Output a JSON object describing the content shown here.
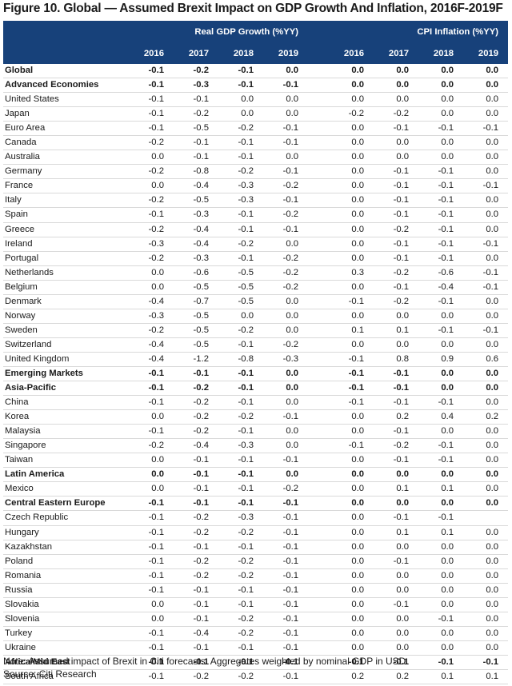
{
  "title": "Figure 10. Global — Assumed Brexit Impact on GDP Growth And Inflation, 2016F-2019F",
  "header": {
    "gdp_label": "Real GDP Growth (%YY)",
    "cpi_label": "CPI Inflation (%YY)",
    "years": [
      "2016",
      "2017",
      "2018",
      "2019"
    ]
  },
  "rows": [
    {
      "name": "Global",
      "bold": true,
      "gdp": [
        "-0.1",
        "-0.2",
        "-0.1",
        "0.0"
      ],
      "cpi": [
        "0.0",
        "0.0",
        "0.0",
        "0.0"
      ]
    },
    {
      "name": "Advanced Economies",
      "bold": true,
      "gdp": [
        "-0.1",
        "-0.3",
        "-0.1",
        "-0.1"
      ],
      "cpi": [
        "0.0",
        "0.0",
        "0.0",
        "0.0"
      ]
    },
    {
      "name": "United States",
      "bold": false,
      "gdp": [
        "-0.1",
        "-0.1",
        "0.0",
        "0.0"
      ],
      "cpi": [
        "0.0",
        "0.0",
        "0.0",
        "0.0"
      ]
    },
    {
      "name": "Japan",
      "bold": false,
      "gdp": [
        "-0.1",
        "-0.2",
        "0.0",
        "0.0"
      ],
      "cpi": [
        "-0.2",
        "-0.2",
        "0.0",
        "0.0"
      ]
    },
    {
      "name": "Euro Area",
      "bold": false,
      "gdp": [
        "-0.1",
        "-0.5",
        "-0.2",
        "-0.1"
      ],
      "cpi": [
        "0.0",
        "-0.1",
        "-0.1",
        "-0.1"
      ]
    },
    {
      "name": "Canada",
      "bold": false,
      "gdp": [
        "-0.2",
        "-0.1",
        "-0.1",
        "-0.1"
      ],
      "cpi": [
        "0.0",
        "0.0",
        "0.0",
        "0.0"
      ]
    },
    {
      "name": "Australia",
      "bold": false,
      "gdp": [
        "0.0",
        "-0.1",
        "-0.1",
        "0.0"
      ],
      "cpi": [
        "0.0",
        "0.0",
        "0.0",
        "0.0"
      ]
    },
    {
      "name": "Germany",
      "bold": false,
      "gdp": [
        "-0.2",
        "-0.8",
        "-0.2",
        "-0.1"
      ],
      "cpi": [
        "0.0",
        "-0.1",
        "-0.1",
        "0.0"
      ]
    },
    {
      "name": "France",
      "bold": false,
      "gdp": [
        "0.0",
        "-0.4",
        "-0.3",
        "-0.2"
      ],
      "cpi": [
        "0.0",
        "-0.1",
        "-0.1",
        "-0.1"
      ]
    },
    {
      "name": "Italy",
      "bold": false,
      "gdp": [
        "-0.2",
        "-0.5",
        "-0.3",
        "-0.1"
      ],
      "cpi": [
        "0.0",
        "-0.1",
        "-0.1",
        "0.0"
      ]
    },
    {
      "name": "Spain",
      "bold": false,
      "gdp": [
        "-0.1",
        "-0.3",
        "-0.1",
        "-0.2"
      ],
      "cpi": [
        "0.0",
        "-0.1",
        "-0.1",
        "0.0"
      ]
    },
    {
      "name": "Greece",
      "bold": false,
      "gdp": [
        "-0.2",
        "-0.4",
        "-0.1",
        "-0.1"
      ],
      "cpi": [
        "0.0",
        "-0.2",
        "-0.1",
        "0.0"
      ]
    },
    {
      "name": "Ireland",
      "bold": false,
      "gdp": [
        "-0.3",
        "-0.4",
        "-0.2",
        "0.0"
      ],
      "cpi": [
        "0.0",
        "-0.1",
        "-0.1",
        "-0.1"
      ]
    },
    {
      "name": "Portugal",
      "bold": false,
      "gdp": [
        "-0.2",
        "-0.3",
        "-0.1",
        "-0.2"
      ],
      "cpi": [
        "0.0",
        "-0.1",
        "-0.1",
        "0.0"
      ]
    },
    {
      "name": "Netherlands",
      "bold": false,
      "gdp": [
        "0.0",
        "-0.6",
        "-0.5",
        "-0.2"
      ],
      "cpi": [
        "0.3",
        "-0.2",
        "-0.6",
        "-0.1"
      ]
    },
    {
      "name": "Belgium",
      "bold": false,
      "gdp": [
        "0.0",
        "-0.5",
        "-0.5",
        "-0.2"
      ],
      "cpi": [
        "0.0",
        "-0.1",
        "-0.4",
        "-0.1"
      ]
    },
    {
      "name": "Denmark",
      "bold": false,
      "gdp": [
        "-0.4",
        "-0.7",
        "-0.5",
        "0.0"
      ],
      "cpi": [
        "-0.1",
        "-0.2",
        "-0.1",
        "0.0"
      ]
    },
    {
      "name": "Norway",
      "bold": false,
      "gdp": [
        "-0.3",
        "-0.5",
        "0.0",
        "0.0"
      ],
      "cpi": [
        "0.0",
        "0.0",
        "0.0",
        "0.0"
      ]
    },
    {
      "name": "Sweden",
      "bold": false,
      "gdp": [
        "-0.2",
        "-0.5",
        "-0.2",
        "0.0"
      ],
      "cpi": [
        "0.1",
        "0.1",
        "-0.1",
        "-0.1"
      ]
    },
    {
      "name": "Switzerland",
      "bold": false,
      "gdp": [
        "-0.4",
        "-0.5",
        "-0.1",
        "-0.2"
      ],
      "cpi": [
        "0.0",
        "0.0",
        "0.0",
        "0.0"
      ]
    },
    {
      "name": "United Kingdom",
      "bold": false,
      "gdp": [
        "-0.4",
        "-1.2",
        "-0.8",
        "-0.3"
      ],
      "cpi": [
        "-0.1",
        "0.8",
        "0.9",
        "0.6"
      ]
    },
    {
      "name": "Emerging Markets",
      "bold": true,
      "gdp": [
        "-0.1",
        "-0.1",
        "-0.1",
        "0.0"
      ],
      "cpi": [
        "-0.1",
        "-0.1",
        "0.0",
        "0.0"
      ]
    },
    {
      "name": "Asia-Pacific",
      "bold": true,
      "gdp": [
        "-0.1",
        "-0.2",
        "-0.1",
        "0.0"
      ],
      "cpi": [
        "-0.1",
        "-0.1",
        "0.0",
        "0.0"
      ]
    },
    {
      "name": "China",
      "bold": false,
      "gdp": [
        "-0.1",
        "-0.2",
        "-0.1",
        "0.0"
      ],
      "cpi": [
        "-0.1",
        "-0.1",
        "-0.1",
        "0.0"
      ]
    },
    {
      "name": "Korea",
      "bold": false,
      "gdp": [
        "0.0",
        "-0.2",
        "-0.2",
        "-0.1"
      ],
      "cpi": [
        "0.0",
        "0.2",
        "0.4",
        "0.2"
      ]
    },
    {
      "name": "Malaysia",
      "bold": false,
      "gdp": [
        "-0.1",
        "-0.2",
        "-0.1",
        "0.0"
      ],
      "cpi": [
        "0.0",
        "-0.1",
        "0.0",
        "0.0"
      ]
    },
    {
      "name": "Singapore",
      "bold": false,
      "gdp": [
        "-0.2",
        "-0.4",
        "-0.3",
        "0.0"
      ],
      "cpi": [
        "-0.1",
        "-0.2",
        "-0.1",
        "0.0"
      ]
    },
    {
      "name": "Taiwan",
      "bold": false,
      "gdp": [
        "0.0",
        "-0.1",
        "-0.1",
        "-0.1"
      ],
      "cpi": [
        "0.0",
        "-0.1",
        "-0.1",
        "0.0"
      ]
    },
    {
      "name": "Latin America",
      "bold": true,
      "gdp": [
        "0.0",
        "-0.1",
        "-0.1",
        "0.0"
      ],
      "cpi": [
        "0.0",
        "0.0",
        "0.0",
        "0.0"
      ]
    },
    {
      "name": "Mexico",
      "bold": false,
      "gdp": [
        "0.0",
        "-0.1",
        "-0.1",
        "-0.2"
      ],
      "cpi": [
        "0.0",
        "0.1",
        "0.1",
        "0.0"
      ]
    },
    {
      "name": "Central Eastern Europe",
      "bold": true,
      "gdp": [
        "-0.1",
        "-0.1",
        "-0.1",
        "-0.1"
      ],
      "cpi": [
        "0.0",
        "0.0",
        "0.0",
        "0.0"
      ]
    },
    {
      "name": "Czech Republic",
      "bold": false,
      "gdp": [
        "-0.1",
        "-0.2",
        "-0.3",
        "-0.1"
      ],
      "cpi": [
        "0.0",
        "-0.1",
        "-0.1",
        ""
      ]
    },
    {
      "name": "Hungary",
      "bold": false,
      "gdp": [
        "-0.1",
        "-0.2",
        "-0.2",
        "-0.1"
      ],
      "cpi": [
        "0.0",
        "0.1",
        "0.1",
        "0.0"
      ]
    },
    {
      "name": "Kazakhstan",
      "bold": false,
      "gdp": [
        "-0.1",
        "-0.1",
        "-0.1",
        "-0.1"
      ],
      "cpi": [
        "0.0",
        "0.0",
        "0.0",
        "0.0"
      ]
    },
    {
      "name": "Poland",
      "bold": false,
      "gdp": [
        "-0.1",
        "-0.2",
        "-0.2",
        "-0.1"
      ],
      "cpi": [
        "0.0",
        "-0.1",
        "0.0",
        "0.0"
      ]
    },
    {
      "name": "Romania",
      "bold": false,
      "gdp": [
        "-0.1",
        "-0.2",
        "-0.2",
        "-0.1"
      ],
      "cpi": [
        "0.0",
        "0.0",
        "0.0",
        "0.0"
      ]
    },
    {
      "name": "Russia",
      "bold": false,
      "gdp": [
        "-0.1",
        "-0.1",
        "-0.1",
        "-0.1"
      ],
      "cpi": [
        "0.0",
        "0.0",
        "0.0",
        "0.0"
      ]
    },
    {
      "name": "Slovakia",
      "bold": false,
      "gdp": [
        "0.0",
        "-0.1",
        "-0.1",
        "-0.1"
      ],
      "cpi": [
        "0.0",
        "-0.1",
        "0.0",
        "0.0"
      ]
    },
    {
      "name": "Slovenia",
      "bold": false,
      "gdp": [
        "0.0",
        "-0.1",
        "-0.2",
        "-0.1"
      ],
      "cpi": [
        "0.0",
        "0.0",
        "-0.1",
        "0.0"
      ]
    },
    {
      "name": "Turkey",
      "bold": false,
      "gdp": [
        "-0.1",
        "-0.4",
        "-0.2",
        "-0.1"
      ],
      "cpi": [
        "0.0",
        "0.0",
        "0.0",
        "0.0"
      ]
    },
    {
      "name": "Ukraine",
      "bold": false,
      "gdp": [
        "-0.1",
        "-0.1",
        "-0.1",
        "-0.1"
      ],
      "cpi": [
        "0.0",
        "0.0",
        "0.0",
        "0.0"
      ]
    },
    {
      "name": "Africa/Mid East",
      "bold": true,
      "gdp": [
        "-0.1",
        "-0.1",
        "-0.1",
        "-0.1"
      ],
      "cpi": [
        "-0.1",
        "-0.1",
        "-0.1",
        "-0.1"
      ]
    },
    {
      "name": "South Africa",
      "bold": false,
      "gdp": [
        "-0.1",
        "-0.2",
        "-0.2",
        "-0.1"
      ],
      "cpi": [
        "0.2",
        "0.2",
        "0.1",
        "0.1"
      ]
    }
  ],
  "note": "Note: Assumed impact of Brexit in Citi forecasts. Aggregates weighted by nominal GDP in USD.",
  "source": "Source: Citi Research",
  "colors": {
    "header_bg": "#17417a",
    "header_text": "#ffffff"
  }
}
